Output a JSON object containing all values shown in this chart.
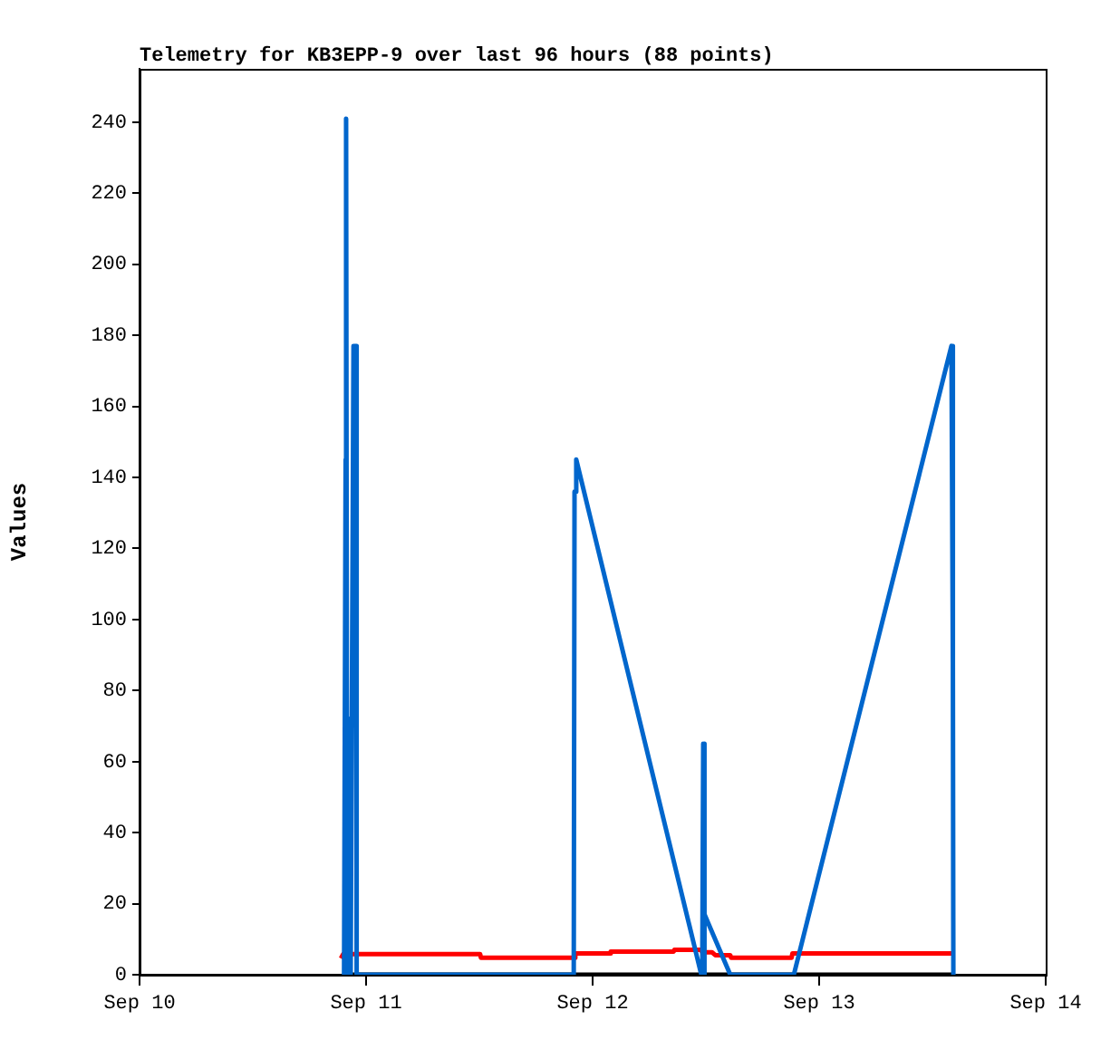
{
  "chart_data": {
    "type": "line",
    "title": "Telemetry for KB3EPP-9 over last 96 hours (88 points)",
    "ylabel": "Values",
    "xlim": [
      "--09-10",
      "--09-14"
    ],
    "xticks": [
      {
        "value": "--09-10",
        "label": "Sep 10"
      },
      {
        "value": "--09-11",
        "label": "Sep 11"
      },
      {
        "value": "--09-12",
        "label": "Sep 12"
      },
      {
        "value": "--09-13",
        "label": "Sep 13"
      },
      {
        "value": "--09-14",
        "label": "Sep 14"
      }
    ],
    "ylim": [
      0,
      255
    ],
    "yticks": [
      0,
      20,
      40,
      60,
      80,
      100,
      120,
      140,
      160,
      180,
      200,
      220,
      240
    ],
    "grid": false,
    "legend": false,
    "marker": "none",
    "line_style": "solid",
    "series": [
      {
        "color": "#0066cc",
        "x": [
          "--09-10T21:40",
          "--09-10T21:50",
          "--09-10T21:53",
          "--09-10T22:00",
          "--09-10T22:05",
          "--09-10T22:10",
          "--09-10T22:16",
          "--09-10T22:22",
          "--09-10T22:40",
          "--09-10T22:55",
          "--09-10T23:00",
          "--09-11T22:00",
          "--09-11T22:05",
          "--09-11T22:16",
          "--09-12T11:31",
          "--09-12T11:37",
          "--09-12T11:43",
          "--09-12T11:48",
          "--09-12T11:54",
          "--09-12T14:35",
          "--09-12T21:19",
          "--09-13T14:01",
          "--09-13T14:10",
          "--09-13T14:13"
        ],
        "values": [
          0,
          145,
          241,
          0,
          72,
          0,
          26,
          0,
          177,
          177,
          0,
          0,
          136,
          145,
          0,
          0,
          65,
          0,
          17,
          0,
          0,
          177,
          88,
          0
        ]
      },
      {
        "color": "#ff0000",
        "x": [
          "--09-10T21:20",
          "--09-10T21:35",
          "--09-11T12:05",
          "--09-11T12:10",
          "--09-11T22:05",
          "--09-11T22:10",
          "--09-12T01:50",
          "--09-12T01:55",
          "--09-12T08:35",
          "--09-12T08:40",
          "--09-12T11:31",
          "--09-12T11:37",
          "--09-12T12:40",
          "--09-12T13:00",
          "--09-12T14:35",
          "--09-12T14:40",
          "--09-12T21:05",
          "--09-12T21:10",
          "--09-13T14:13"
        ],
        "values": [
          4.6,
          5.8,
          5.8,
          4.8,
          4.8,
          6,
          6,
          6.5,
          6.5,
          7,
          7,
          6.3,
          6.3,
          5.5,
          5.5,
          4.8,
          4.8,
          6,
          6
        ]
      },
      {
        "color": "#000000",
        "x": [
          "--09-10T21:30",
          "--09-13T14:13"
        ],
        "values": [
          0,
          0
        ]
      }
    ]
  }
}
